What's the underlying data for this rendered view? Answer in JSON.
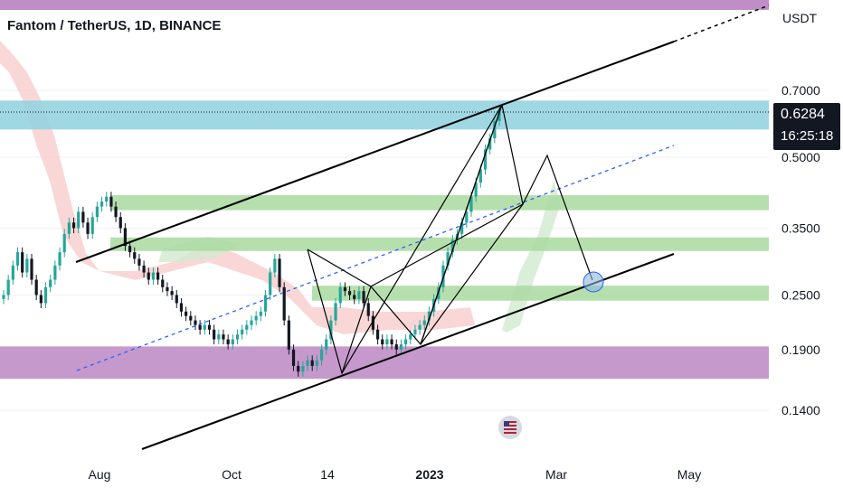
{
  "header": {
    "symbol_title": "Fantom / TetherUS, 1D, BINANCE"
  },
  "price_axis": {
    "unit": "USDT",
    "ticks": [
      "0.7000",
      "0.5000",
      "0.3500",
      "0.2500",
      "0.1900",
      "0.1400"
    ]
  },
  "time_axis": {
    "ticks": [
      "Aug",
      "Oct",
      "14",
      "2023",
      "Mar",
      "May"
    ]
  },
  "last_price": {
    "value": "0.6284",
    "countdown": "16:25:18"
  },
  "colors": {
    "up": "#26a69a",
    "down": "#131722",
    "magenta_zone": "#c08ec7",
    "cyan_zone": "#95d3e0",
    "green_zone": "#a9d9a0",
    "cloud_red": "#f7c6c4",
    "cloud_green": "#d2ead0",
    "trendline": "#000000",
    "midline": "#2962ff"
  },
  "icons": [
    "us-flag-icon"
  ],
  "chart_data": {
    "type": "candlestick",
    "title": "Fantom / TetherUS, 1D, BINANCE",
    "ylabel": "USDT",
    "y_scale": "log",
    "ylim": [
      0.12,
      0.95
    ],
    "x_ticks": [
      "Aug",
      "Oct",
      "14",
      "2023",
      "Mar",
      "May"
    ],
    "last": 0.6284,
    "zones": [
      {
        "kind": "supply",
        "color": "cyan",
        "from": 0.575,
        "to": 0.665
      },
      {
        "kind": "level",
        "color": "green",
        "from": 0.383,
        "to": 0.413
      },
      {
        "kind": "level",
        "color": "green",
        "from": 0.312,
        "to": 0.334
      },
      {
        "kind": "level",
        "color": "green",
        "from": 0.243,
        "to": 0.262
      },
      {
        "kind": "demand",
        "color": "magenta",
        "from": 0.164,
        "to": 0.193
      }
    ],
    "series": [
      {
        "name": "",
        "points": [
          0.25,
          0.27,
          0.29,
          0.31,
          0.28,
          0.3,
          0.27,
          0.25,
          0.24,
          0.26,
          0.27,
          0.29,
          0.31,
          0.34,
          0.36,
          0.35,
          0.38,
          0.36,
          0.34,
          0.37,
          0.39,
          0.4,
          0.41,
          0.39,
          0.37,
          0.35,
          0.32,
          0.31,
          0.3,
          0.29,
          0.28,
          0.27,
          0.28,
          0.27,
          0.26,
          0.255,
          0.25,
          0.24,
          0.23,
          0.225,
          0.22,
          0.215,
          0.21,
          0.215,
          0.21,
          0.2,
          0.205,
          0.2,
          0.195,
          0.2,
          0.205,
          0.21,
          0.215,
          0.22,
          0.225,
          0.23,
          0.25,
          0.28,
          0.3,
          0.26,
          0.22,
          0.19,
          0.175,
          0.17,
          0.175,
          0.18,
          0.175,
          0.18,
          0.19,
          0.2,
          0.22,
          0.24,
          0.26,
          0.255,
          0.25,
          0.245,
          0.255,
          0.24,
          0.225,
          0.21,
          0.2,
          0.195,
          0.2,
          0.195,
          0.19,
          0.195,
          0.2,
          0.205,
          0.21,
          0.215,
          0.22,
          0.23,
          0.245,
          0.26,
          0.29,
          0.31,
          0.33,
          0.34,
          0.36,
          0.38,
          0.41,
          0.44,
          0.47,
          0.52,
          0.55,
          0.6,
          0.63
        ]
      }
    ]
  }
}
